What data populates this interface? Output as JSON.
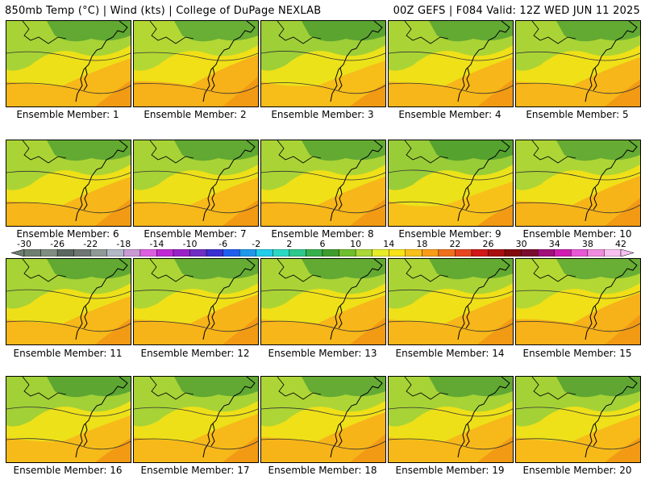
{
  "header": {
    "left_text": "850mb Temp (°C) | Wind (kts) | College of DuPage NEXLAB",
    "right_text": "00Z GEFS | F084 Valid: 12Z WED JUN 11 2025"
  },
  "panels": [
    {
      "label": "Ensemble Member: 1",
      "warmth": 0.45
    },
    {
      "label": "Ensemble Member: 2",
      "warmth": 0.65
    },
    {
      "label": "Ensemble Member: 3",
      "warmth": 0.3
    },
    {
      "label": "Ensemble Member: 4",
      "warmth": 0.5
    },
    {
      "label": "Ensemble Member: 5",
      "warmth": 0.5
    },
    {
      "label": "Ensemble Member: 6",
      "warmth": 0.5
    },
    {
      "label": "Ensemble Member: 7",
      "warmth": 0.45
    },
    {
      "label": "Ensemble Member: 8",
      "warmth": 0.5
    },
    {
      "label": "Ensemble Member: 9",
      "warmth": 0.2
    },
    {
      "label": "Ensemble Member: 10",
      "warmth": 0.55
    },
    {
      "label": "Ensemble Member: 11",
      "warmth": 0.45
    },
    {
      "label": "Ensemble Member: 12",
      "warmth": 0.55
    },
    {
      "label": "Ensemble Member: 13",
      "warmth": 0.5
    },
    {
      "label": "Ensemble Member: 14",
      "warmth": 0.5
    },
    {
      "label": "Ensemble Member: 15",
      "warmth": 0.65
    },
    {
      "label": "Ensemble Member: 16",
      "warmth": 0.35
    },
    {
      "label": "Ensemble Member: 17",
      "warmth": 0.45
    },
    {
      "label": "Ensemble Member: 18",
      "warmth": 0.55
    },
    {
      "label": "Ensemble Member: 19",
      "warmth": 0.45
    },
    {
      "label": "Ensemble Member: 20",
      "warmth": 0.4
    }
  ],
  "colorbar": {
    "tick_labels": [
      "-30",
      "-26",
      "-22",
      "-18",
      "-14",
      "-10",
      "-6",
      "-2",
      "2",
      "6",
      "10",
      "14",
      "18",
      "22",
      "26",
      "30",
      "34",
      "38",
      "42"
    ],
    "colors": [
      "#6e7e70",
      "#7f8e81",
      "#5a6660",
      "#6f7572",
      "#8f9a96",
      "#b3b8c9",
      "#c99ad4",
      "#dc5fe0",
      "#c02ad4",
      "#9a21c8",
      "#6f2ec4",
      "#3a2fd0",
      "#1f5ff0",
      "#1e98ea",
      "#21cdea",
      "#2ad9c4",
      "#2ec98c",
      "#36b04c",
      "#3f9d2e",
      "#6fbf2e",
      "#a9d838",
      "#e6ec2a",
      "#f8e218",
      "#f8c01a",
      "#f89c18",
      "#f0701c",
      "#e84620",
      "#d01818",
      "#a80e10",
      "#820a0c",
      "#7a0c30",
      "#a2107a",
      "#d01cb0",
      "#e858d4",
      "#f08ce0",
      "#f8c0f0"
    ]
  }
}
